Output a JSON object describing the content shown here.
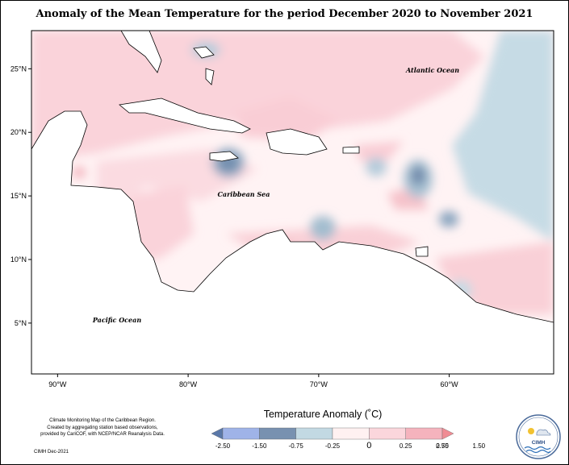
{
  "title": "Anomaly of the Mean Temperature for the period December 2020 to November 2021",
  "map": {
    "lon_range": [
      -92,
      -52
    ],
    "lat_range": [
      1,
      28
    ],
    "lon_ticks": [
      "90°W",
      "80°W",
      "70°W",
      "60°W"
    ],
    "lat_ticks": [
      "25°N",
      "20°N",
      "15°N",
      "10°N",
      "5°N"
    ],
    "labels": {
      "atlantic": "Atlantic Ocean",
      "caribbean": "Caribbean Sea",
      "pacific": "Pacific Ocean"
    }
  },
  "legend": {
    "title": "Temperature Anomaly (˚C)",
    "tick_labels": [
      "-2.50",
      "-1.50",
      "-0.75",
      "-0.25",
      "0",
      "0.25",
      "0.75",
      "1.50",
      "2.50"
    ],
    "colors": [
      "#5a78a8",
      "#9fb3e8",
      "#7891b0",
      "#c2d9e3",
      "#fff1f1",
      "#fbd6dc",
      "#f5b3bd",
      "#f08c94"
    ]
  },
  "credit": {
    "lines": [
      "Climate Monitoring Map of the Caribbean Region.",
      "Created by aggregating station based observations,",
      "provided by CariCOF, with NCEP/NCAR Reanalysis Data."
    ],
    "issued": "CIMH Dec-2021"
  },
  "logo": {
    "text": "CIMH"
  }
}
